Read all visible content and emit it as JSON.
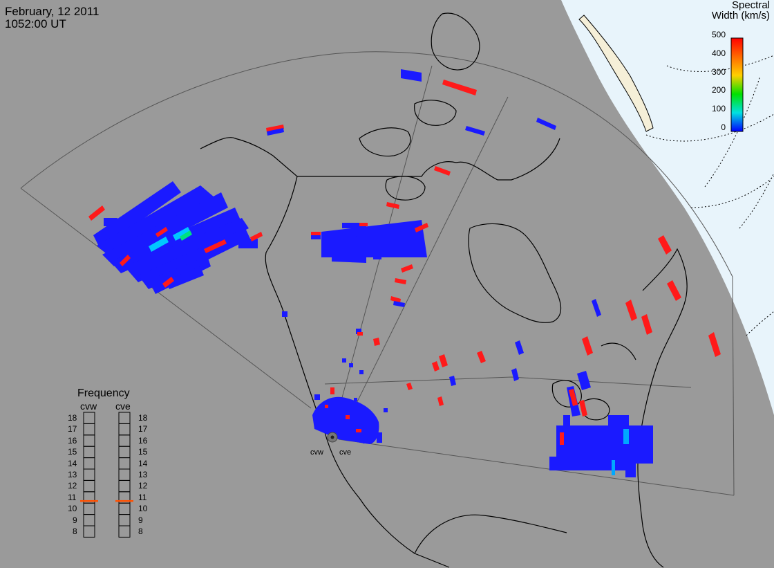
{
  "header": {
    "date": "February, 12 2011",
    "time": "1052:00 UT"
  },
  "colorbar": {
    "title_line1": "Spectral",
    "title_line2": "Width (km/s)",
    "ticks": [
      "500",
      "400",
      "300",
      "200",
      "100",
      "0"
    ],
    "colors": [
      "#ff0000",
      "#ff8c00",
      "#ffff00",
      "#00e000",
      "#00e0e0",
      "#0000ff"
    ]
  },
  "frequency_panel": {
    "title": "Frequency",
    "radars": [
      "cvw",
      "cve"
    ],
    "scale": [
      "18",
      "17",
      "16",
      "15",
      "14",
      "13",
      "12",
      "11",
      "10",
      "9",
      "8"
    ],
    "cvw_frequency_mhz": 10.7,
    "cve_frequency_mhz": 10.7,
    "marker_color": "#ff5000"
  },
  "radar_sites": [
    {
      "name": "cvw",
      "label": "cvw"
    },
    {
      "name": "cve",
      "label": "cve"
    }
  ],
  "colors": {
    "background": "#9a9a9a",
    "sunlit_region": "#e8f4fb",
    "land_outline": "#000000",
    "fov_outline": "#555555",
    "low_width": "#1a1aff",
    "high_width": "#ff1a1a",
    "mid_width": "#00c8ff"
  }
}
